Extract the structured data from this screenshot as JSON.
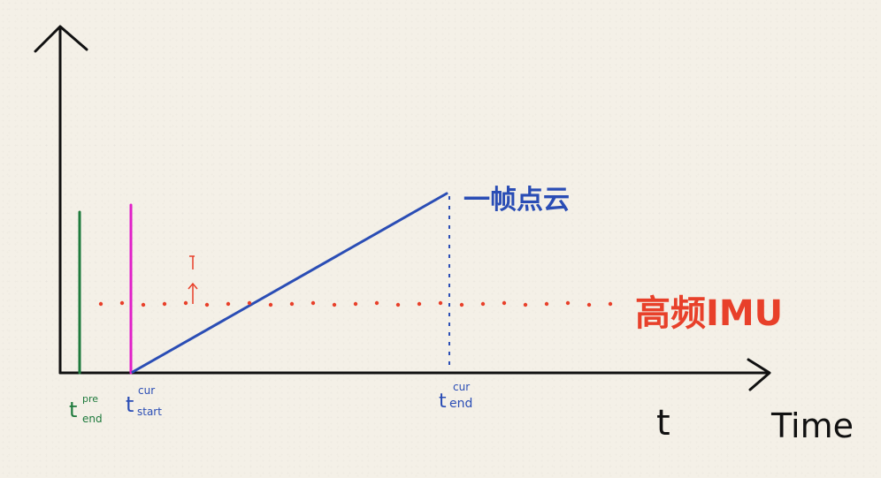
{
  "colors": {
    "axis": "#111111",
    "prev_end_marker": "#1e7a3c",
    "cur_start_marker": "#e020c8",
    "point_cloud_line": "#2a4db5",
    "imu_dots": "#e8402a",
    "tick_label_blue": "#2a4db5",
    "tick_label_green": "#1e7a3c"
  },
  "labels": {
    "point_cloud": "一帧点云",
    "imu": "高频IMU",
    "t_var": "t",
    "time_axis": "Time",
    "t_prev_end": {
      "base": "t",
      "sup": "pre",
      "sub": "end"
    },
    "t_cur_start": {
      "base": "t",
      "sup": "cur",
      "sub": "start"
    },
    "t_cur_end": {
      "base": "t",
      "sup": "cur",
      "sub": "end"
    }
  }
}
